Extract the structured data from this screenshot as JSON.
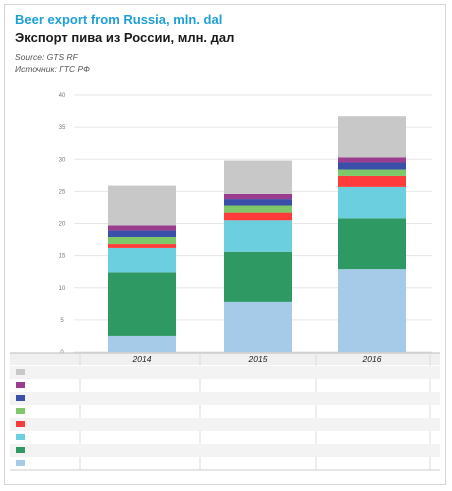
{
  "header": {
    "title_en": "Beer export from Russia, mln. dal",
    "title_ru": "Экспорт пива из России, млн. дал",
    "source_en": "Source: GTS RF",
    "source_ru": "Источник: ГТС РФ"
  },
  "chart_data": {
    "type": "bar",
    "stacked": true,
    "categories": [
      "2014",
      "2015",
      "2016"
    ],
    "ylim": [
      0,
      40
    ],
    "yticks": [
      "0",
      "5",
      "10",
      "15",
      "20",
      "25",
      "30",
      "35",
      "40"
    ],
    "grid": true,
    "series": [
      {
        "name": "",
        "color": "#a6cbe9",
        "values": [
          2.5,
          7.8,
          12.9
        ]
      },
      {
        "name": "",
        "color": "#2e9963",
        "values": [
          9.9,
          7.8,
          7.9
        ]
      },
      {
        "name": "",
        "color": "#6ccfdf",
        "values": [
          3.8,
          4.9,
          4.9
        ]
      },
      {
        "name": "",
        "color": "#ff3b3b",
        "values": [
          0.6,
          1.2,
          1.7
        ]
      },
      {
        "name": "",
        "color": "#7fc86a",
        "values": [
          1.1,
          1.1,
          1.0
        ]
      },
      {
        "name": "",
        "color": "#3a4fa8",
        "values": [
          1.0,
          1.0,
          1.1
        ]
      },
      {
        "name": "",
        "color": "#9a3d8e",
        "values": [
          0.8,
          0.8,
          0.8
        ]
      },
      {
        "name": "",
        "color": "#c8c8c8",
        "values": [
          6.2,
          5.2,
          6.4
        ]
      }
    ]
  },
  "table": {
    "rows": [
      {
        "swatch": "#c8c8c8",
        "label": "",
        "values": [
          "",
          "",
          ""
        ]
      },
      {
        "swatch": "#9a3d8e",
        "label": "",
        "values": [
          "",
          "",
          ""
        ]
      },
      {
        "swatch": "#3a4fa8",
        "label": "",
        "values": [
          "",
          "",
          ""
        ]
      },
      {
        "swatch": "#7fc86a",
        "label": "",
        "values": [
          "",
          "",
          ""
        ]
      },
      {
        "swatch": "#ff3b3b",
        "label": "",
        "values": [
          "",
          "",
          ""
        ]
      },
      {
        "swatch": "#6ccfdf",
        "label": "",
        "values": [
          "",
          "",
          ""
        ]
      },
      {
        "swatch": "#2e9963",
        "label": "",
        "values": [
          "",
          "",
          ""
        ]
      },
      {
        "swatch": "#a6cbe9",
        "label": "",
        "values": [
          "",
          "",
          ""
        ]
      }
    ]
  }
}
